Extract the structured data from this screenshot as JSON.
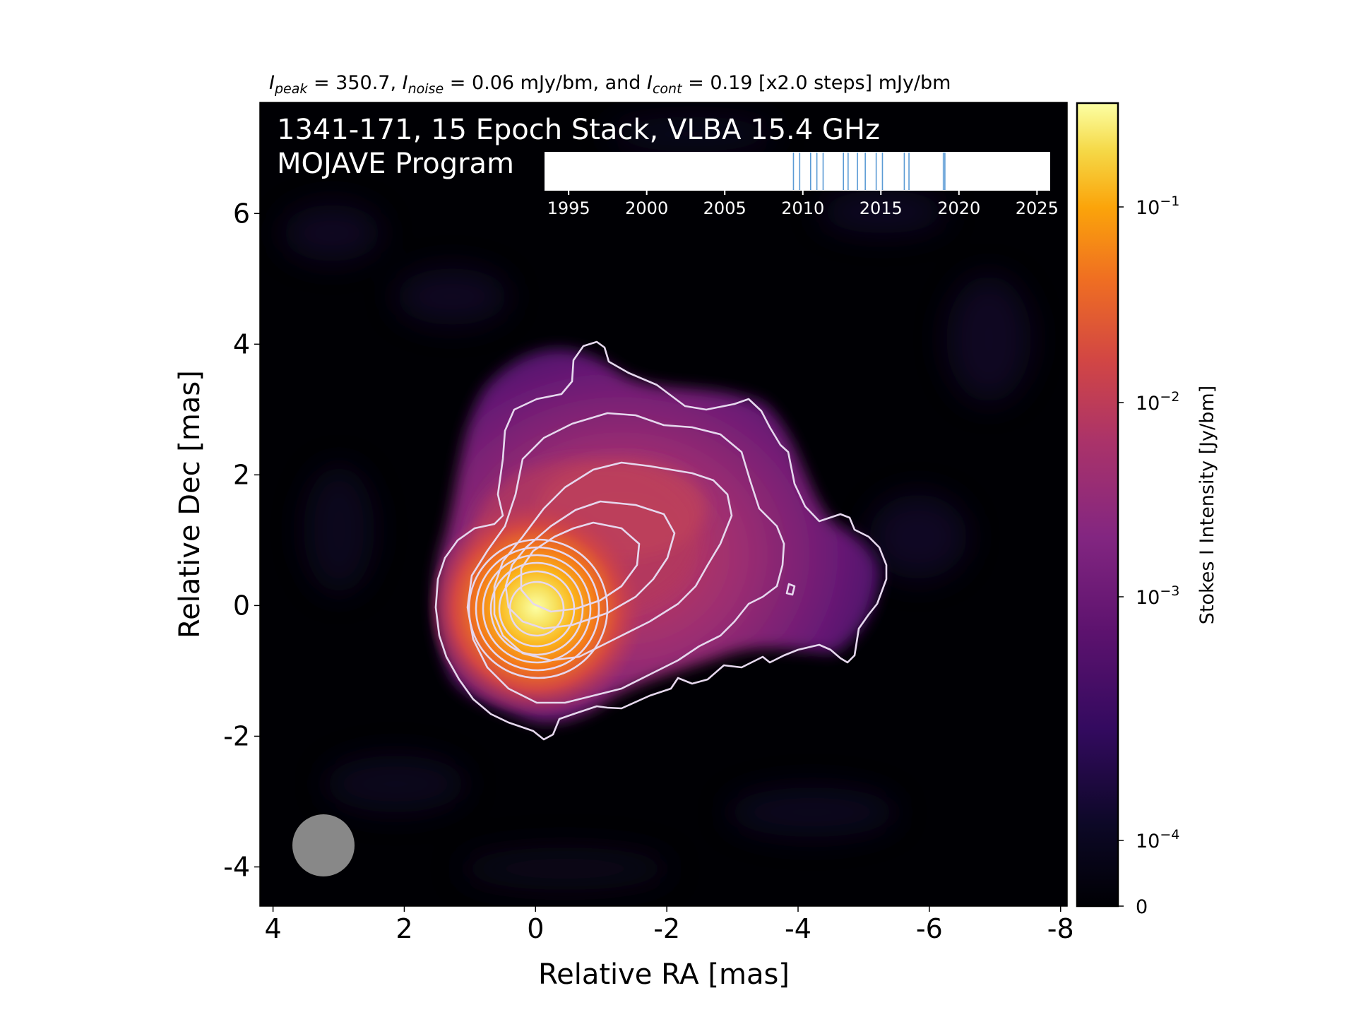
{
  "chart_data": {
    "type": "heatmap",
    "subtitle": {
      "peak_value": "350.7",
      "noise_value": "0.06",
      "cont_value": "0.19",
      "steps": "[x2.0 steps]",
      "unit": "mJy/bm"
    },
    "title_line1": "1341-171, 15 Epoch Stack, VLBA 15.4 GHz",
    "title_line2": "MOJAVE Program",
    "xlabel": "Relative RA [mas]",
    "ylabel": "Relative Dec [mas]",
    "x_ticks": [
      "4",
      "2",
      "0",
      "-2",
      "-4",
      "-6",
      "-8"
    ],
    "y_ticks": [
      "6",
      "4",
      "2",
      "0",
      "-2",
      "-4"
    ],
    "xlim": [
      4.2,
      -8.1
    ],
    "ylim": [
      -4.6,
      7.7
    ],
    "colorbar": {
      "label": "Stokes I Intensity [Jy/bm]",
      "scale": "log",
      "colormap": "inferno",
      "ticks": [
        {
          "base": "10",
          "exp": "−1"
        },
        {
          "base": "10",
          "exp": "−2"
        },
        {
          "base": "10",
          "exp": "−3"
        },
        {
          "base": "10",
          "exp": "−4"
        },
        {
          "base": "0",
          "exp": ""
        }
      ]
    },
    "timeline": {
      "ticks": [
        "1995",
        "2000",
        "2005",
        "2010",
        "2015",
        "2020",
        "2025"
      ],
      "range": [
        1993.5,
        2025.8
      ],
      "epoch_years": [
        2009.4,
        2009.8,
        2010.5,
        2010.9,
        2011.3,
        2012.6,
        2012.9,
        2013.5,
        2014.0,
        2014.7,
        2015.1,
        2016.5,
        2016.8,
        2019.0,
        2019.1
      ],
      "epoch_color": "#5b9bd5"
    },
    "beam": {
      "x_mas": 3.25,
      "y_mas": -3.6,
      "diameter_mas": 0.95,
      "color": "#888888"
    },
    "peak_position": {
      "x_mas": 0.0,
      "y_mas": 0.0
    }
  }
}
